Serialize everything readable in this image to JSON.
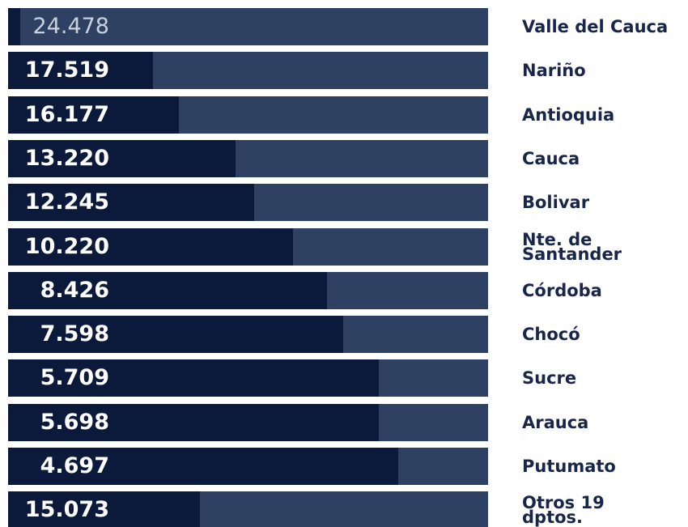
{
  "chart_data": {
    "type": "bar",
    "categories": [
      "Valle del Cauca",
      "Nariño",
      "Antioquia",
      "Cauca",
      "Bolivar",
      "Nte. de Santander",
      "Córdoba",
      "Chocó",
      "Sucre",
      "Arauca",
      "Putumato",
      "Otros 19 dptos."
    ],
    "values": [
      24478,
      17519,
      16177,
      13220,
      12245,
      10220,
      8426,
      7598,
      5709,
      5698,
      4697,
      15073
    ],
    "value_labels": [
      "24.478",
      "17.519",
      "16.177",
      "13.220",
      "12.245",
      "10.220",
      "8.426",
      "7.598",
      "5.709",
      "5.698",
      "4.697",
      "15.073"
    ],
    "color": "#2e4163",
    "track_color": "#0b1a3a"
  }
}
